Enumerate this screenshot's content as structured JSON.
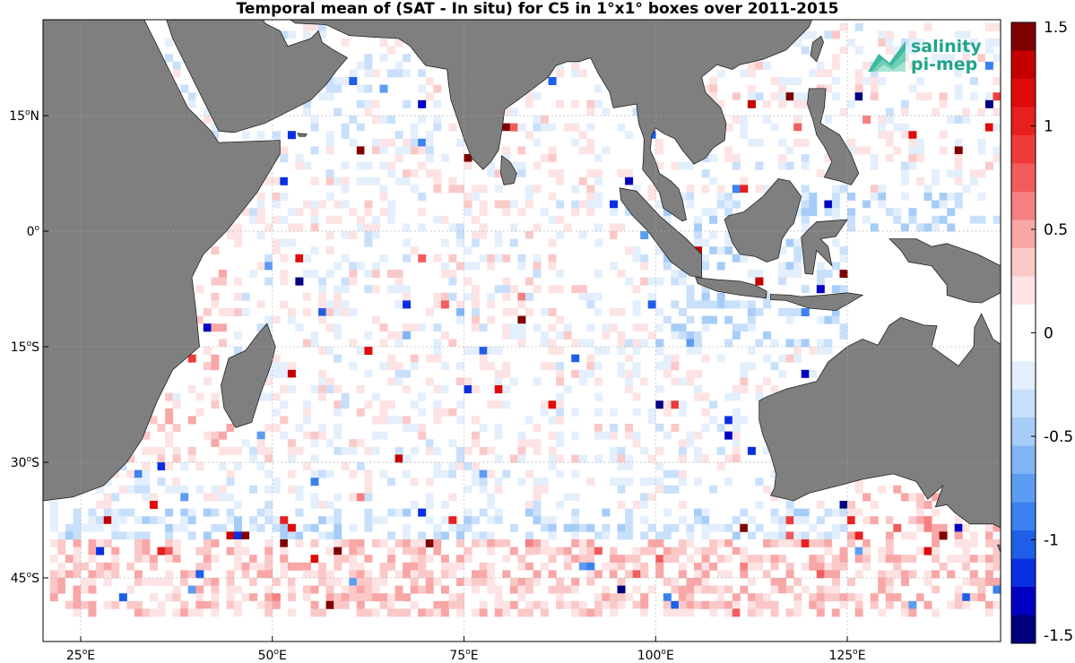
{
  "title": "Temporal mean of (SAT - In situ) for C5 in 1°x1° boxes over 2011-2015",
  "logo": {
    "line1": "salinity",
    "line2": "pi-mep",
    "color": "#1fa58c"
  },
  "map": {
    "lon_range": [
      20,
      148
    ],
    "lat_range": [
      -52,
      28
    ],
    "land_color": "#7f7f7f",
    "grid": true,
    "x_ticks": [
      {
        "value": 25,
        "deg": "25",
        "suffix": "E"
      },
      {
        "value": 50,
        "deg": "50",
        "suffix": "E"
      },
      {
        "value": 75,
        "deg": "75",
        "suffix": "E"
      },
      {
        "value": 100,
        "deg": "100",
        "suffix": "E"
      },
      {
        "value": 125,
        "deg": "125",
        "suffix": "E"
      }
    ],
    "y_ticks": [
      {
        "value": 15,
        "deg": "15",
        "suffix": "N"
      },
      {
        "value": 0,
        "deg": "0",
        "suffix": ""
      },
      {
        "value": -15,
        "deg": "15",
        "suffix": "S"
      },
      {
        "value": -30,
        "deg": "30",
        "suffix": "S"
      },
      {
        "value": -45,
        "deg": "45",
        "suffix": "S"
      }
    ],
    "seed": 7
  },
  "colorbar": {
    "range": [
      -1.5,
      1.5
    ],
    "labels": [
      "1.5",
      "1",
      "0.5",
      "0",
      "-0.5",
      "-1",
      "-1.5"
    ],
    "label_values": [
      1.5,
      1,
      0.5,
      0,
      -0.5,
      -1,
      -1.5
    ],
    "colors": [
      "#00007f",
      "#0000c4",
      "#0a2fe0",
      "#1f5fe8",
      "#3b82f0",
      "#5c9cf2",
      "#80b5f5",
      "#a6cdf8",
      "#c8e0fb",
      "#e3effd",
      "#ffffff",
      "#ffffff",
      "#fde3e3",
      "#fbc8c8",
      "#f8a6a6",
      "#f58080",
      "#f25c5c",
      "#f03b3b",
      "#e81f1f",
      "#e00a0a",
      "#c40000",
      "#7f0000"
    ]
  }
}
